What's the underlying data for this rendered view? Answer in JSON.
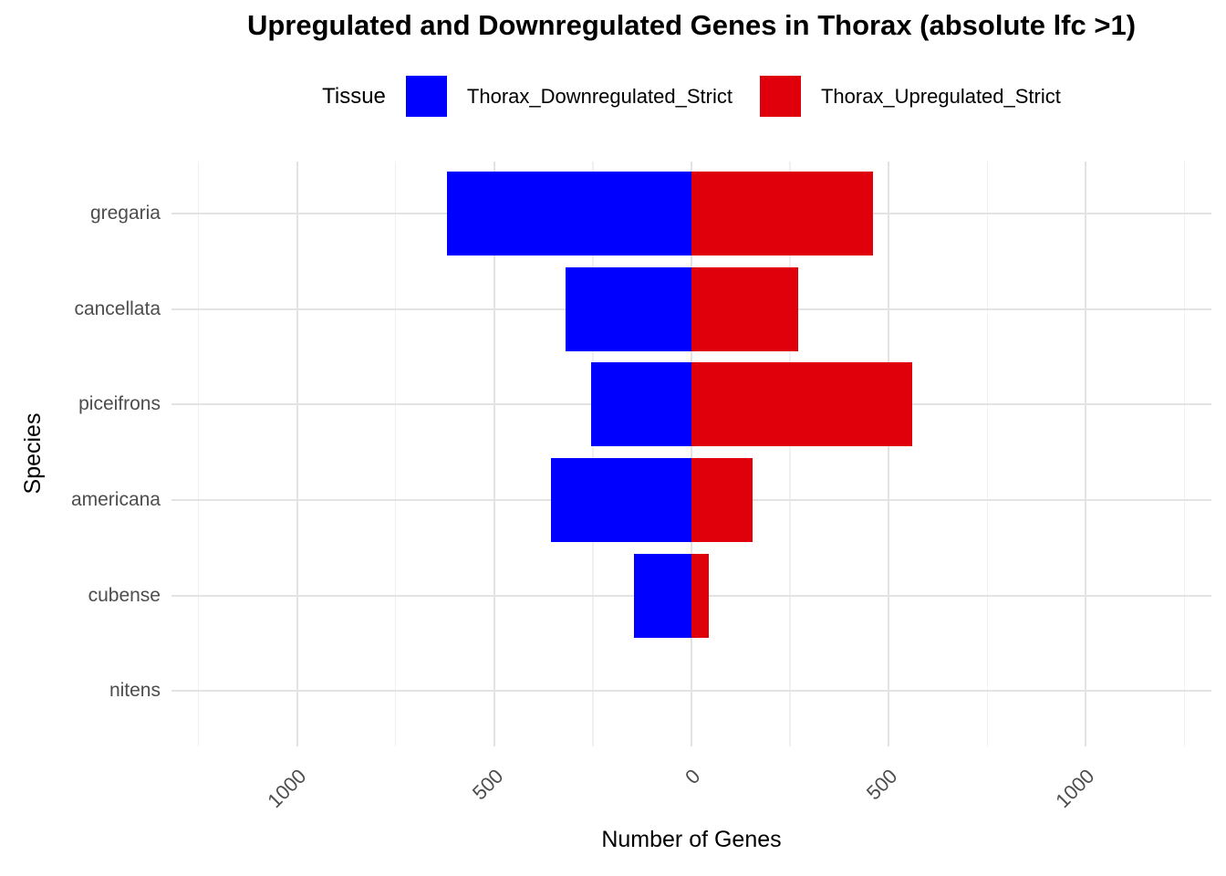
{
  "title": "Upregulated and Downregulated Genes in Thorax (absolute lfc >1)",
  "legend": {
    "title": "Tissue",
    "items": [
      {
        "label": "Thorax_Downregulated_Strict",
        "color": "#0000ff"
      },
      {
        "label": "Thorax_Upregulated_Strict",
        "color": "#e0000b"
      }
    ]
  },
  "axes": {
    "x_label": "Number of Genes",
    "y_label": "Species"
  },
  "colors": {
    "downregulated": "#0000ff",
    "upregulated": "#e0000b",
    "grid_major": "#e3e3e3",
    "grid_minor": "#f0f0f0",
    "tick_text": "#4d4d4d"
  },
  "chart_data": {
    "type": "bar",
    "orientation": "horizontal-diverging",
    "title": "Upregulated and Downregulated Genes in Thorax (absolute lfc >1)",
    "xlabel": "Number of Genes",
    "ylabel": "Species",
    "legend_title": "Tissue",
    "legend_position": "top",
    "grid": true,
    "categories": [
      "gregaria",
      "cancellata",
      "piceifrons",
      "americana",
      "cubense",
      "nitens"
    ],
    "series": [
      {
        "name": "Thorax_Downregulated_Strict",
        "color": "#0000ff",
        "direction": "left",
        "values": [
          620,
          320,
          255,
          355,
          145,
          0
        ]
      },
      {
        "name": "Thorax_Upregulated_Strict",
        "color": "#e0000b",
        "direction": "right",
        "values": [
          460,
          270,
          560,
          155,
          45,
          0
        ]
      }
    ],
    "xlim": [
      -1318,
      1318
    ],
    "x_major_ticks": [
      -1000,
      -500,
      0,
      500,
      1000
    ],
    "x_tick_labels": [
      "1000",
      "500",
      "0",
      "500",
      "1000"
    ],
    "x_minor_gridlines": [
      -1250,
      -750,
      -250,
      250,
      750,
      1250
    ]
  }
}
